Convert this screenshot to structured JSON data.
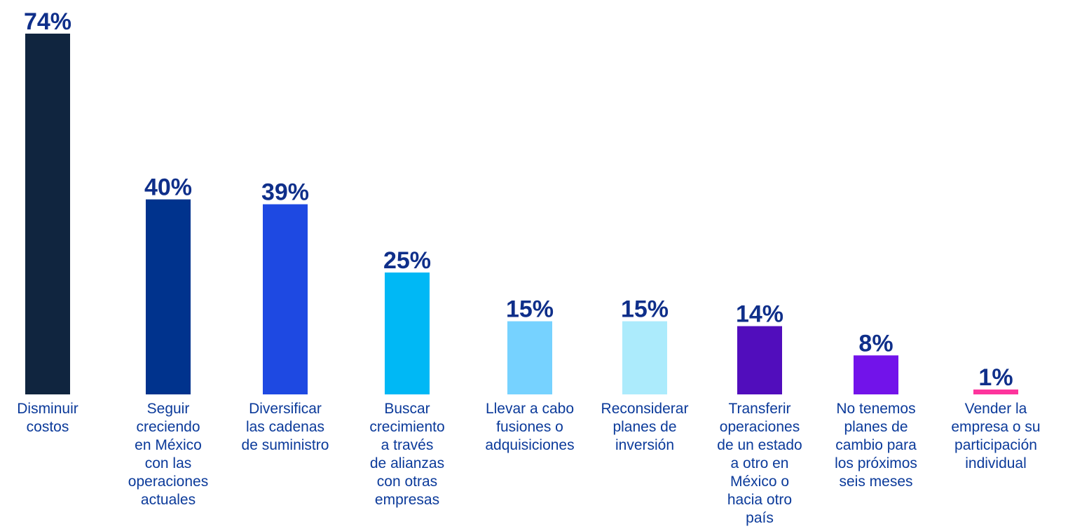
{
  "chart_data": {
    "type": "bar",
    "title": "",
    "xlabel": "",
    "ylabel": "",
    "ylim": [
      0,
      74
    ],
    "grid": false,
    "legend": "none",
    "value_suffix": "%",
    "categories": [
      [
        "Disminuir",
        "costos"
      ],
      [
        "Seguir",
        "creciendo",
        "en México",
        "con las",
        "operaciones",
        "actuales"
      ],
      [
        "Diversificar",
        "las cadenas",
        "de suministro"
      ],
      [
        "Buscar",
        "crecimiento",
        "a través",
        "de alianzas",
        "con otras",
        "empresas"
      ],
      [
        "Llevar a cabo",
        "fusiones o",
        "adquisiciones"
      ],
      [
        "Reconsiderar",
        "planes de",
        "inversión"
      ],
      [
        "Transferir",
        "operaciones",
        "de un estado",
        "a otro en",
        "México o",
        "hacia otro",
        "país"
      ],
      [
        "No tenemos",
        "planes de",
        "cambio para",
        "los próximos",
        "seis meses"
      ],
      [
        "Vender la",
        "empresa o su",
        "participación",
        "individual"
      ]
    ],
    "values": [
      74,
      40,
      39,
      25,
      15,
      15,
      14,
      8,
      1
    ],
    "colors": [
      "#10253f",
      "#00338d",
      "#1e49e2",
      "#00b8f5",
      "#76d2ff",
      "#acebfc",
      "#510dbc",
      "#7213ea",
      "#fd349c"
    ],
    "label_color": "#0f2f8a",
    "category_color": "#0b3a9a"
  }
}
